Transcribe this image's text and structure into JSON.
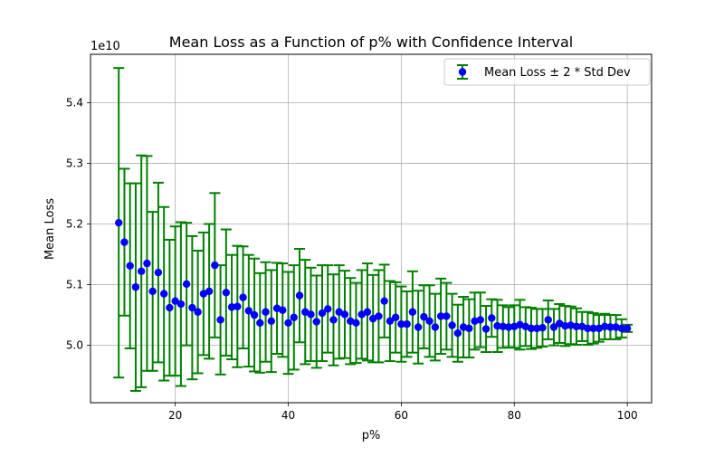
{
  "chart_data": {
    "type": "scatter",
    "title": "Mean Loss as a Function of p% with Confidence Interval",
    "xlabel": "p%",
    "ylabel": "Mean Loss",
    "y_offset_label": "1e10",
    "y_scale": 10000000000,
    "xlim": [
      5,
      104.3
    ],
    "ylim": [
      4.9055,
      5.4796
    ],
    "x_ticks": [
      20,
      40,
      60,
      80,
      100
    ],
    "x_tick_labels": [
      "20",
      "40",
      "60",
      "80",
      "100"
    ],
    "y_ticks": [
      5.0,
      5.1,
      5.2,
      5.3,
      5.4
    ],
    "y_tick_labels": [
      "5.0",
      "5.1",
      "5.2",
      "5.3",
      "5.4"
    ],
    "grid": true,
    "legend_position": "top-right",
    "colors": {
      "marker": "#0000ff",
      "errorbar": "#008000",
      "grid": "#b0b0b0"
    },
    "series": [
      {
        "name": "Mean Loss ± 2 * Std Dev",
        "x": [
          10,
          11,
          12,
          13,
          14,
          15,
          16,
          17,
          18,
          19,
          20,
          21,
          22,
          23,
          24,
          25,
          26,
          27,
          28,
          29,
          30,
          31,
          32,
          33,
          34,
          35,
          36,
          37,
          38,
          39,
          40,
          41,
          42,
          43,
          44,
          45,
          46,
          47,
          48,
          49,
          50,
          51,
          52,
          53,
          54,
          55,
          56,
          57,
          58,
          59,
          60,
          61,
          62,
          63,
          64,
          65,
          66,
          67,
          68,
          69,
          70,
          71,
          72,
          73,
          74,
          75,
          76,
          77,
          78,
          79,
          80,
          81,
          82,
          83,
          84,
          85,
          86,
          87,
          88,
          89,
          90,
          91,
          92,
          93,
          94,
          95,
          96,
          97,
          98,
          99,
          100
        ],
        "y": [
          5.202,
          5.17,
          5.131,
          5.096,
          5.122,
          5.135,
          5.089,
          5.12,
          5.085,
          5.062,
          5.073,
          5.068,
          5.101,
          5.062,
          5.055,
          5.085,
          5.089,
          5.132,
          5.042,
          5.087,
          5.063,
          5.064,
          5.079,
          5.057,
          5.05,
          5.037,
          5.055,
          5.04,
          5.061,
          5.058,
          5.037,
          5.046,
          5.082,
          5.055,
          5.051,
          5.039,
          5.053,
          5.06,
          5.042,
          5.055,
          5.051,
          5.04,
          5.037,
          5.051,
          5.055,
          5.044,
          5.048,
          5.073,
          5.04,
          5.046,
          5.035,
          5.035,
          5.055,
          5.03,
          5.047,
          5.04,
          5.03,
          5.048,
          5.048,
          5.033,
          5.02,
          5.03,
          5.028,
          5.04,
          5.042,
          5.027,
          5.045,
          5.032,
          5.031,
          5.03,
          5.031,
          5.034,
          5.031,
          5.028,
          5.028,
          5.029,
          5.042,
          5.03,
          5.036,
          5.032,
          5.033,
          5.031,
          5.031,
          5.028,
          5.028,
          5.028,
          5.031,
          5.03,
          5.03,
          5.028,
          5.028
        ],
        "err": [
          0.255,
          0.121,
          0.136,
          0.171,
          0.191,
          0.177,
          0.131,
          0.148,
          0.143,
          0.112,
          0.123,
          0.135,
          0.101,
          0.118,
          0.101,
          0.101,
          0.111,
          0.119,
          0.09,
          0.104,
          0.086,
          0.1,
          0.084,
          0.092,
          0.093,
          0.082,
          0.082,
          0.084,
          0.075,
          0.077,
          0.084,
          0.086,
          0.077,
          0.086,
          0.077,
          0.076,
          0.079,
          0.072,
          0.075,
          0.077,
          0.072,
          0.071,
          0.066,
          0.073,
          0.08,
          0.072,
          0.076,
          0.06,
          0.066,
          0.058,
          0.062,
          0.054,
          0.067,
          0.06,
          0.052,
          0.059,
          0.055,
          0.062,
          0.055,
          0.052,
          0.047,
          0.05,
          0.048,
          0.047,
          0.045,
          0.038,
          0.031,
          0.043,
          0.035,
          0.033,
          0.035,
          0.041,
          0.032,
          0.034,
          0.032,
          0.031,
          0.032,
          0.03,
          0.032,
          0.033,
          0.031,
          0.03,
          0.024,
          0.027,
          0.025,
          0.022,
          0.021,
          0.02,
          0.02,
          0.015,
          0.006
        ]
      }
    ]
  }
}
